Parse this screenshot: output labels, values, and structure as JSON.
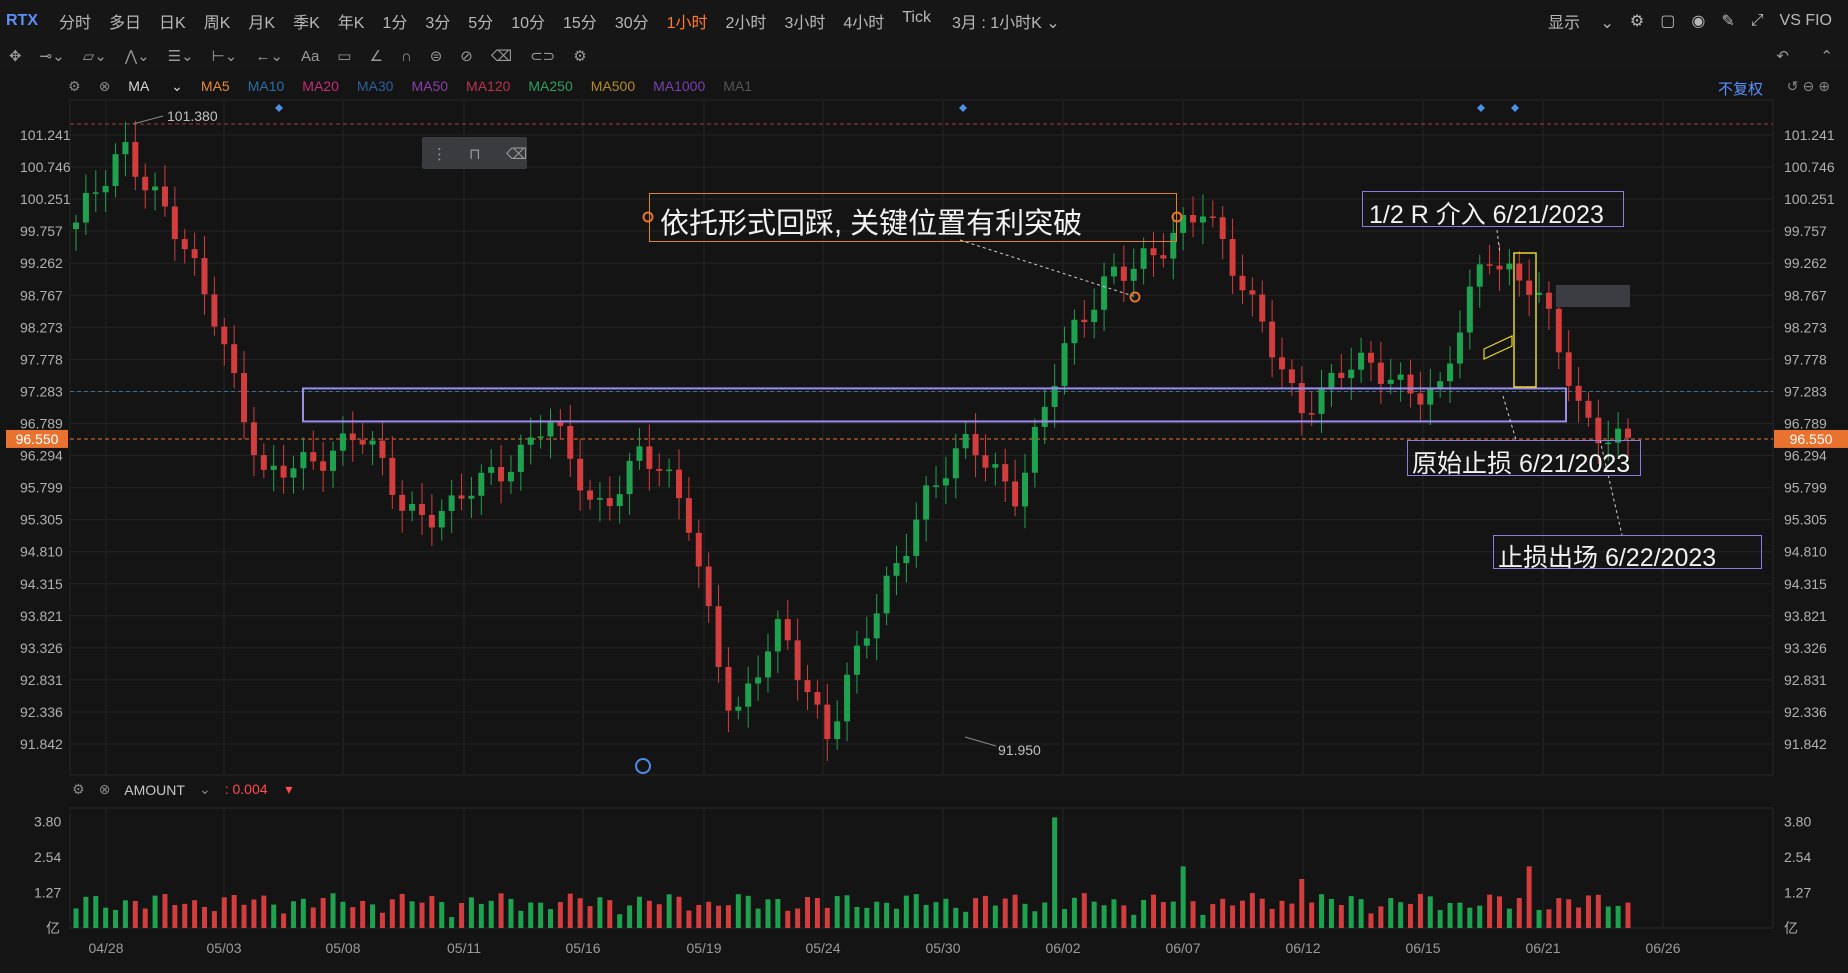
{
  "header": {
    "symbol": "RTX",
    "periods": [
      "分时",
      "多日",
      "日K",
      "周K",
      "月K",
      "季K",
      "年K",
      "1分",
      "3分",
      "5分",
      "10分",
      "15分",
      "30分",
      "1小时",
      "2小时",
      "3小时",
      "4小时",
      "Tick"
    ],
    "active_period": "1小时",
    "view_label": "3月 : 1小时K",
    "display_label": "显示",
    "compare_label": "VS FIO"
  },
  "indicator_bar": {
    "main_name": "MA",
    "items": [
      {
        "label": "MA5",
        "color": "#e88a2e"
      },
      {
        "label": "MA10",
        "color": "#2b6fa6"
      },
      {
        "label": "MA20",
        "color": "#c0307a"
      },
      {
        "label": "MA30",
        "color": "#2c5f9e"
      },
      {
        "label": "MA50",
        "color": "#8c3fa8"
      },
      {
        "label": "MA120",
        "color": "#b8344a"
      },
      {
        "label": "MA250",
        "color": "#2e9e5e"
      },
      {
        "label": "MA500",
        "color": "#b58a2a"
      },
      {
        "label": "MA1000",
        "color": "#7a3fb0"
      },
      {
        "label": "MA1",
        "color": "#555555"
      }
    ],
    "adjust_label": "不复权"
  },
  "volume_panel": {
    "name": "AMOUNT",
    "value": ": 0.004",
    "value_color": "#ff4d4f",
    "unit_label": "亿"
  },
  "annotations": {
    "main_text": "依托形式回踩, 关键位置有利突破",
    "entry_text": "1/2 R 介入 6/21/2023",
    "stop_text": "原始止损 6/21/2023",
    "exit_text": "止损出场 6/22/2023"
  },
  "colors": {
    "up": "#1fa24f",
    "down": "#d33d3d",
    "price_line": "#e8722e",
    "range_box": "#9b8cf0",
    "highlight_box": "#e6d52c",
    "accent": "#ff7a2e"
  },
  "chart_data": {
    "type": "candlestick",
    "title": "RTX",
    "ylim": [
      91.6,
      101.45
    ],
    "yticks": [
      "101.241",
      "100.746",
      "100.251",
      "99.757",
      "99.262",
      "98.767",
      "98.273",
      "97.778",
      "97.283",
      "96.789",
      "96.294",
      "95.799",
      "95.305",
      "94.810",
      "94.315",
      "93.821",
      "93.326",
      "92.831",
      "92.336",
      "91.842"
    ],
    "current_price": "96.550",
    "high_label": "101.380",
    "low_label": "91.950",
    "high": 101.38,
    "low": 91.95,
    "x_dates": [
      "04/28",
      "05/03",
      "05/08",
      "05/11",
      "05/16",
      "05/19",
      "05/24",
      "05/30",
      "06/02",
      "06/07",
      "06/12",
      "06/15",
      "06/21",
      "06/26"
    ],
    "range_box": {
      "y_top": 97.33,
      "y_bottom": 96.82,
      "x_from": "05/04",
      "x_to": "06/22"
    },
    "close_anchors": [
      {
        "date": "04/28",
        "close": 99.75
      },
      {
        "date": "04/28+",
        "close": 101.2
      },
      {
        "date": "05/01",
        "close": 99.8
      },
      {
        "date": "05/02",
        "close": 98.5
      },
      {
        "date": "05/03",
        "close": 95.8
      },
      {
        "date": "05/05",
        "close": 96.3
      },
      {
        "date": "05/08",
        "close": 96.6
      },
      {
        "date": "05/09",
        "close": 95.5
      },
      {
        "date": "05/11",
        "close": 95.45
      },
      {
        "date": "05/15",
        "close": 96.05
      },
      {
        "date": "05/17",
        "close": 96.9
      },
      {
        "date": "05/18",
        "close": 95.4
      },
      {
        "date": "05/19",
        "close": 96.4
      },
      {
        "date": "05/22",
        "close": 95.35
      },
      {
        "date": "05/24",
        "close": 92.2
      },
      {
        "date": "05/25",
        "close": 93.6
      },
      {
        "date": "05/30",
        "close": 92.05
      },
      {
        "date": "05/31",
        "close": 93.8
      },
      {
        "date": "06/01",
        "close": 95.7
      },
      {
        "date": "06/02",
        "close": 96.4
      },
      {
        "date": "06/05",
        "close": 95.8
      },
      {
        "date": "06/06",
        "close": 97.8
      },
      {
        "date": "06/07",
        "close": 99.25
      },
      {
        "date": "06/09",
        "close": 99.25
      },
      {
        "date": "06/12",
        "close": 100.3
      },
      {
        "date": "06/13",
        "close": 98.5
      },
      {
        "date": "06/14",
        "close": 97.1
      },
      {
        "date": "06/15",
        "close": 97.6
      },
      {
        "date": "06/16",
        "close": 97.55
      },
      {
        "date": "06/20",
        "close": 97.2
      },
      {
        "date": "06/21",
        "close": 99.5
      },
      {
        "date": "06/21+",
        "close": 98.9
      },
      {
        "date": "06/22",
        "close": 96.9
      },
      {
        "date": "06/22+",
        "close": 96.55
      }
    ],
    "volume_yticks": [
      "3.80",
      "2.54",
      "1.27"
    ],
    "volume_peak": 4.0,
    "volume_unit": "亿"
  }
}
